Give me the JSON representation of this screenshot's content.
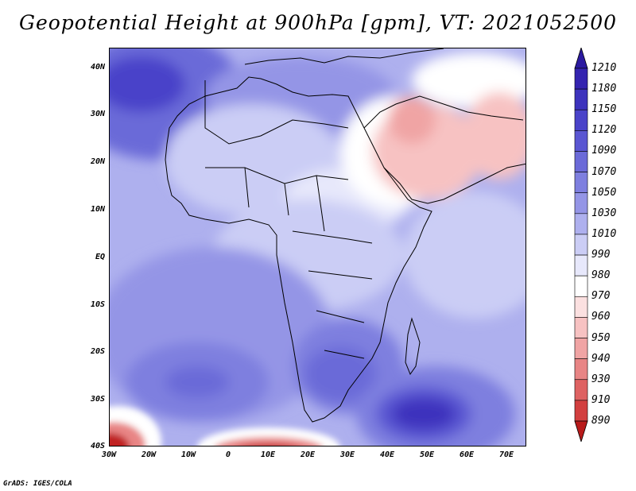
{
  "title": "Geopotential Height at 900hPa [gpm], VT: 2021052500",
  "credit": "GrADS: IGES/COLA",
  "lat_ticks": [
    "40N",
    "30N",
    "20N",
    "10N",
    "EQ",
    "10S",
    "20S",
    "30S",
    "40S"
  ],
  "lon_ticks": [
    "30W",
    "20W",
    "10W",
    "0",
    "10E",
    "20E",
    "30E",
    "40E",
    "50E",
    "60E",
    "70E"
  ],
  "colorbar": {
    "labels": [
      "1210",
      "1180",
      "1150",
      "1120",
      "1090",
      "1070",
      "1050",
      "1030",
      "1010",
      "990",
      "980",
      "970",
      "960",
      "950",
      "940",
      "930",
      "910",
      "890"
    ],
    "colors": [
      "#2b1aa0",
      "#3424b0",
      "#3d33bd",
      "#4a43c9",
      "#5a56d2",
      "#6b6ad8",
      "#7e7fdf",
      "#9495e6",
      "#aeb0ee",
      "#cbcdf5",
      "#e7e8fb",
      "#ffffff",
      "#fbe0e0",
      "#f7c2c2",
      "#f0a4a4",
      "#e88585",
      "#de6262",
      "#d23f3f",
      "#c02222"
    ],
    "top_color": "#2b1aa0",
    "bottom_color": "#b81a1a"
  },
  "map": {
    "region": "Africa, Middle East",
    "extent": {
      "lon": [
        -30,
        75
      ],
      "lat": [
        -40,
        45
      ]
    },
    "field": "geopotential height 900 hPa"
  }
}
